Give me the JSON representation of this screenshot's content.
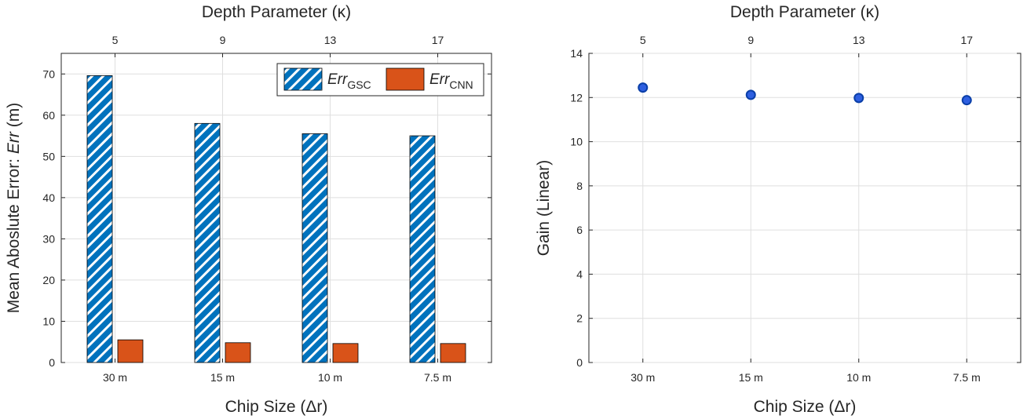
{
  "chart_data": [
    {
      "type": "bar",
      "categories": [
        "30 m",
        "15 m",
        "10 m",
        "7.5 m"
      ],
      "top_categories": [
        "5",
        "9",
        "13",
        "17"
      ],
      "series": [
        {
          "name_base": "Err",
          "name_sub": "GSC",
          "values": [
            69.6,
            58.0,
            55.5,
            55.0
          ],
          "color": "#0072BD",
          "pattern": "diagonal-white-stripes"
        },
        {
          "name_base": "Err",
          "name_sub": "CNN",
          "values": [
            5.5,
            4.8,
            4.6,
            4.6
          ],
          "color": "#D95319",
          "pattern": "solid"
        }
      ],
      "xlabel": "Chip Size (Δr)",
      "x2label": "Depth Parameter (κ)",
      "ylabel_prefix": "Mean Aboslute Error: ",
      "ylabel_var": "Err",
      "ylabel_suffix": " (m)",
      "ylim": [
        0,
        75
      ],
      "yticks": [
        0,
        10,
        20,
        30,
        40,
        50,
        60,
        70
      ],
      "grid": true,
      "legend": "top-right"
    },
    {
      "type": "scatter",
      "categories": [
        "30 m",
        "15 m",
        "10 m",
        "7.5 m"
      ],
      "top_categories": [
        "5",
        "9",
        "13",
        "17"
      ],
      "values": [
        12.45,
        12.12,
        11.98,
        11.88
      ],
      "color": "#0072BD",
      "xlabel": "Chip Size (Δr)",
      "x2label": "Depth Parameter (κ)",
      "ylabel": "Gain (Linear)",
      "ylim": [
        0,
        14
      ],
      "yticks": [
        0,
        2,
        4,
        6,
        8,
        10,
        12,
        14
      ],
      "grid": true
    }
  ]
}
